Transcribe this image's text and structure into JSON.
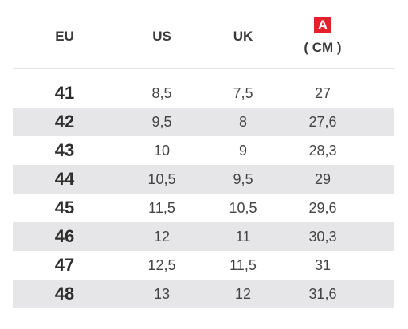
{
  "headers": {
    "eu": "EU",
    "us": "US",
    "uk": "UK",
    "a_badge": "A",
    "cm": "( CM )"
  },
  "colors": {
    "badge": "#e4202b",
    "alt_row": "#e6e6e8"
  },
  "rows": [
    {
      "eu": "41",
      "us": "8,5",
      "uk": "7,5",
      "cm": "27"
    },
    {
      "eu": "42",
      "us": "9,5",
      "uk": "8",
      "cm": "27,6"
    },
    {
      "eu": "43",
      "us": "10",
      "uk": "9",
      "cm": "28,3"
    },
    {
      "eu": "44",
      "us": "10,5",
      "uk": "9,5",
      "cm": "29"
    },
    {
      "eu": "45",
      "us": "11,5",
      "uk": "10,5",
      "cm": "29,6"
    },
    {
      "eu": "46",
      "us": "12",
      "uk": "11",
      "cm": "30,3"
    },
    {
      "eu": "47",
      "us": "12,5",
      "uk": "11,5",
      "cm": "31"
    },
    {
      "eu": "48",
      "us": "13",
      "uk": "12",
      "cm": "31,6"
    }
  ]
}
